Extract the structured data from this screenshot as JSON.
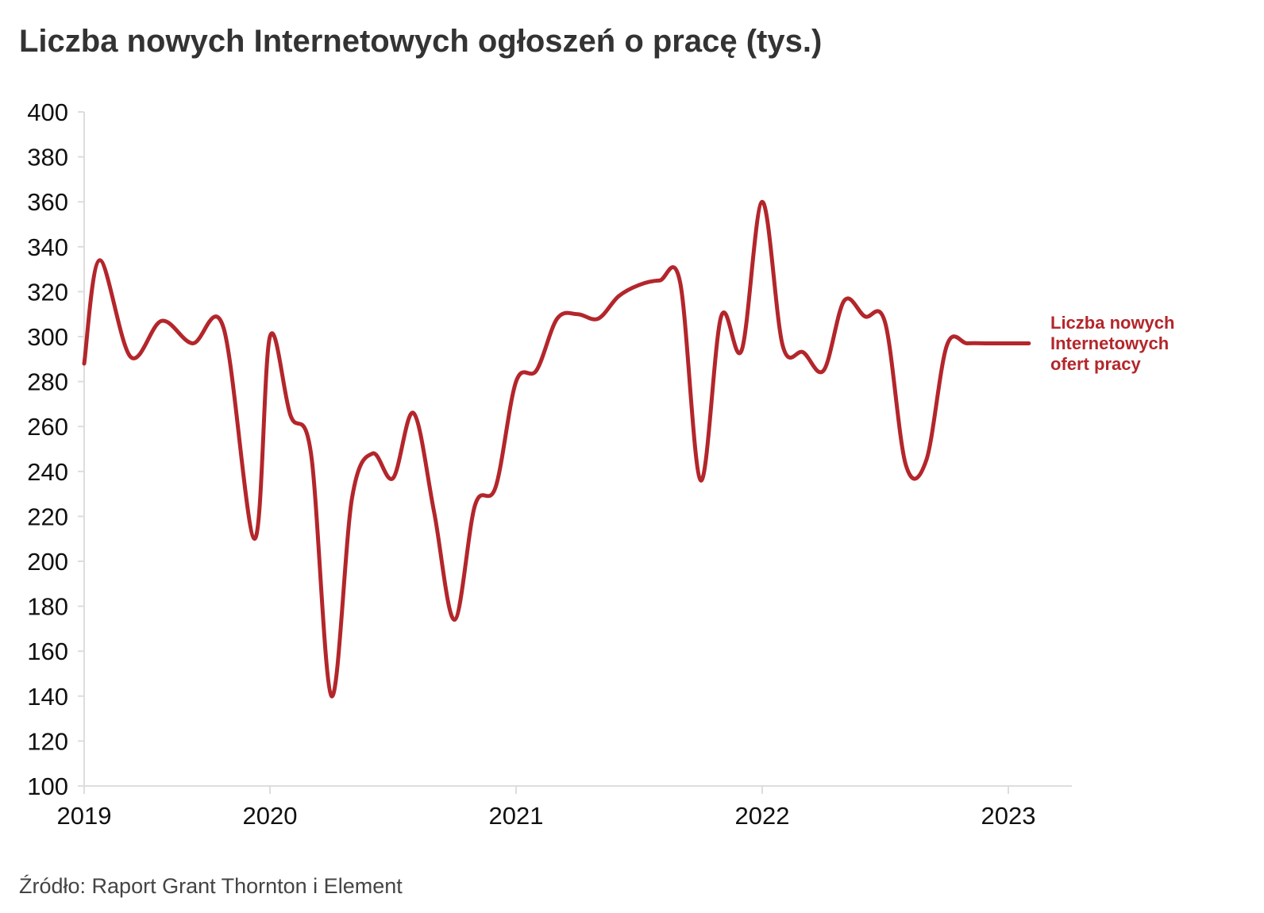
{
  "title": "Liczba nowych Internetowych ogłoszeń o pracę (tys.)",
  "source": "Źródło: Raport Grant Thornton i Element",
  "colors": {
    "line": "#b3262b",
    "axis": "#dddddd",
    "text": "#111111"
  },
  "chart_data": {
    "type": "line",
    "title": "Liczba nowych Internetowych ogłoszeń o pracę (tys.)",
    "xlabel": "",
    "ylabel": "",
    "ylim": [
      100,
      400
    ],
    "yticks": [
      100,
      120,
      140,
      160,
      180,
      200,
      220,
      240,
      260,
      280,
      300,
      320,
      340,
      360,
      380,
      400
    ],
    "xticks": [
      "2019",
      "2020",
      "2021",
      "2022",
      "2023"
    ],
    "grid": false,
    "legend": "end-of-line label",
    "series": [
      {
        "name": "Liczba nowych Internetowych ofert pracy",
        "label_lines": [
          "Liczba nowych",
          "Internetowych",
          "ofert pracy"
        ],
        "x": [
          "2019-01",
          "2019-02",
          "2019-04",
          "2019-06",
          "2019-08",
          "2019-10",
          "2019-12",
          "2020-01",
          "2020-02",
          "2020-03",
          "2020-04",
          "2020-05",
          "2020-06",
          "2020-07",
          "2020-08",
          "2020-09",
          "2020-10",
          "2020-11",
          "2020-12",
          "2021-01",
          "2021-02",
          "2021-03",
          "2021-04",
          "2021-05",
          "2021-06",
          "2021-07",
          "2021-08",
          "2021-09",
          "2021-10",
          "2021-11",
          "2021-12",
          "2022-01",
          "2022-02",
          "2022-03",
          "2022-04",
          "2022-05",
          "2022-06",
          "2022-07",
          "2022-08",
          "2022-09",
          "2022-10",
          "2022-11",
          "2022-12",
          "2023-01",
          "2023-02"
        ],
        "values": [
          288,
          334,
          291,
          307,
          297,
          304,
          210,
          300,
          265,
          248,
          140,
          228,
          248,
          237,
          266,
          222,
          174,
          225,
          233,
          280,
          285,
          308,
          310,
          308,
          318,
          323,
          325,
          324,
          236,
          309,
          294,
          360,
          296,
          293,
          285,
          316,
          309,
          306,
          243,
          245,
          296,
          297,
          297,
          297,
          297
        ]
      }
    ]
  }
}
